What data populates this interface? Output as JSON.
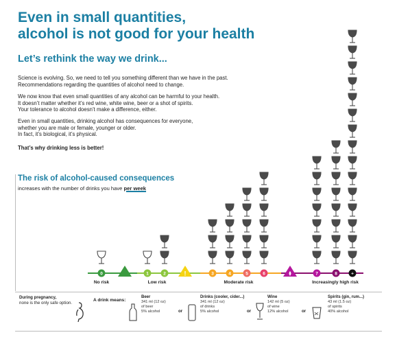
{
  "title": [
    "Even in small quantities,",
    "alcohol is not good for your health"
  ],
  "subtitle": "Let’s rethink the way we drink...",
  "paragraphs": [
    [
      "Science is evolving. So, we need to tell you something different than we have in the past.",
      "Recommendations regarding the quantities of alcohol need to change."
    ],
    [
      "We now know that even small quantities of any alcohol can be harmful to your health.",
      "It doesn’t matter whether it’s red wine, white wine, beer or a shot of spirits.",
      "Your tolerance to alcohol doesn’t make a difference, either."
    ],
    [
      "Even in small quantities, drinking alcohol has consequences for everyone,",
      "whether you are male or female, younger or older.",
      "In fact, it’s biological, it’s physical."
    ]
  ],
  "conclusion": "That’s why drinking less is better!",
  "risk_title": "The risk of alcohol-caused consequences",
  "risk_sub_prefix": "increases with the number of drinks you have",
  "risk_sub_emph": "per week",
  "scale": {
    "levels": [
      {
        "drinks": 0,
        "color": "#3a9a3f"
      },
      {
        "drinks": 1,
        "color": "#8cc63e"
      },
      {
        "drinks": 2,
        "color": "#8cc63e"
      },
      {
        "drinks": 3,
        "color": "#f6a623"
      },
      {
        "drinks": 4,
        "color": "#f6a623"
      },
      {
        "drinks": 5,
        "color": "#ef6c62"
      },
      {
        "drinks": 6,
        "color": "#e8416a"
      },
      {
        "drinks": 7,
        "color": "#b5179e"
      },
      {
        "drinks": 8,
        "color": "#8a0f6e"
      },
      {
        "drinks": "+",
        "color": "#111111"
      }
    ],
    "labels": [
      "No risk",
      "Low risk",
      "Moderate risk",
      "Increasingly high risk"
    ],
    "glass_counts": {
      "0": 1,
      "1": 1,
      "2": 2,
      "3": 3,
      "4": 4,
      "5": 5,
      "6": 6,
      "7": 7,
      "8": 8,
      "9": 15
    },
    "triangle_colors": [
      "#3a9a3f",
      "#f5d312",
      "#b5179e"
    ],
    "glass_color": "#4a4a4a"
  },
  "footer": {
    "pregnancy_bold": "During pregnancy,",
    "pregnancy_text": "none is the only safe option.",
    "drink_means": "A drink means:",
    "or": "or",
    "drinks": [
      {
        "name": "Beer",
        "lines": [
          "341 ml (12 oz)",
          "of beer",
          "5% alcohol"
        ]
      },
      {
        "name": "Drinks (cooler, cider...)",
        "lines": [
          "341 ml (12 oz)",
          "of drinks",
          "5% alcohol"
        ]
      },
      {
        "name": "Wine",
        "lines": [
          "142 ml (5 oz)",
          "of wine",
          "12% alcohol"
        ]
      },
      {
        "name": "Spirits (gin, rum...)",
        "lines": [
          "43 ml (1.5 oz)",
          "of spirits",
          "40% alcohol"
        ]
      }
    ]
  }
}
